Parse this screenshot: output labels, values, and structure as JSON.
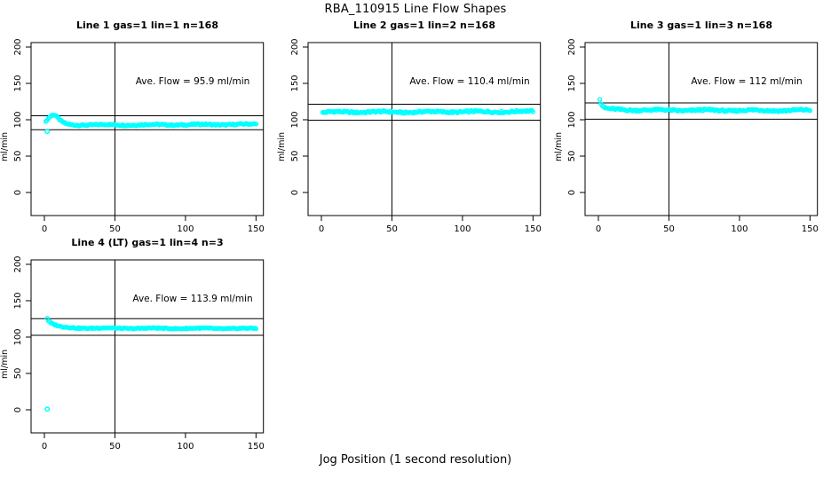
{
  "page": {
    "title": "RBA_110915  Line Flow Shapes",
    "xlabel": "Jog Position (1 second resolution)"
  },
  "colors": {
    "points": "#00FFFF",
    "axis": "#000000",
    "background": "#ffffff"
  },
  "chart_data": [
    {
      "type": "scatter",
      "title": "Line 1 gas=1 lin=1 n=168",
      "annotation": "Ave. Flow =  95.9  ml/min",
      "ave_flow_ml_min": 95.9,
      "n": 168,
      "ylabel": "ml/min",
      "xticks": [
        0,
        50,
        100,
        150
      ],
      "yticks": [
        0,
        50,
        100,
        150,
        200
      ],
      "xlim": [
        -9,
        155
      ],
      "ylim": [
        -32,
        207
      ],
      "vline_x": 50,
      "hlines": [
        105.5,
        86.3
      ],
      "grid": false,
      "n_points": 168,
      "profile": [
        [
          1,
          97
        ],
        [
          2,
          100
        ],
        [
          4,
          104
        ],
        [
          6,
          106.5
        ],
        [
          8,
          105.5
        ],
        [
          10,
          101
        ],
        [
          12,
          97.5
        ],
        [
          15,
          94.5
        ],
        [
          20,
          93
        ],
        [
          60,
          93
        ],
        [
          110,
          93.3
        ],
        [
          150,
          93.8
        ]
      ],
      "noise": 0.9,
      "outliers": [
        [
          2,
          84
        ]
      ]
    },
    {
      "type": "scatter",
      "title": "Line 2 gas=1 lin=2 n=168",
      "annotation": "Ave. Flow =  110.4  ml/min",
      "ave_flow_ml_min": 110.4,
      "n": 168,
      "ylabel": "ml/min",
      "xticks": [
        0,
        50,
        100,
        150
      ],
      "yticks": [
        0,
        50,
        100,
        150,
        200
      ],
      "xlim": [
        -9,
        155
      ],
      "ylim": [
        -32,
        207
      ],
      "vline_x": 50,
      "hlines": [
        121.4,
        99.4
      ],
      "grid": false,
      "n_points": 168,
      "profile": [
        [
          1,
          109.5
        ],
        [
          5,
          110.5
        ],
        [
          30,
          110.8
        ],
        [
          60,
          110.5
        ],
        [
          90,
          111
        ],
        [
          120,
          111
        ],
        [
          150,
          111.5
        ]
      ],
      "noise": 1.2,
      "outliers": []
    },
    {
      "type": "scatter",
      "title": "Line 3 gas=1 lin=3 n=168",
      "annotation": "Ave. Flow =  112  ml/min",
      "ave_flow_ml_min": 112,
      "n": 168,
      "ylabel": "ml/min",
      "xticks": [
        0,
        50,
        100,
        150
      ],
      "yticks": [
        0,
        50,
        100,
        150,
        200
      ],
      "xlim": [
        -9,
        155
      ],
      "ylim": [
        -32,
        207
      ],
      "vline_x": 50,
      "hlines": [
        123.2,
        100.8
      ],
      "grid": false,
      "n_points": 168,
      "profile": [
        [
          1,
          129
        ],
        [
          2,
          121
        ],
        [
          4,
          116
        ],
        [
          8,
          114.5
        ],
        [
          15,
          113.8
        ],
        [
          40,
          113.2
        ],
        [
          80,
          113
        ],
        [
          120,
          112.8
        ],
        [
          150,
          113
        ]
      ],
      "noise": 1.2,
      "outliers": []
    },
    {
      "type": "scatter",
      "title": "Line 4 (LT) gas=1 lin=4 n=3",
      "annotation": "Ave. Flow =  113.9  ml/min",
      "ave_flow_ml_min": 113.9,
      "n": 3,
      "ylabel": "ml/min",
      "xticks": [
        0,
        50,
        100,
        150
      ],
      "yticks": [
        0,
        50,
        100,
        150,
        200
      ],
      "xlim": [
        -9,
        155
      ],
      "ylim": [
        -32,
        207
      ],
      "vline_x": 50,
      "hlines": [
        125.3,
        102.5
      ],
      "grid": false,
      "n_points": 168,
      "profile": [
        [
          2,
          126
        ],
        [
          3,
          122
        ],
        [
          5,
          118.5
        ],
        [
          8,
          116
        ],
        [
          12,
          114
        ],
        [
          18,
          113
        ],
        [
          30,
          112.3
        ],
        [
          80,
          112
        ],
        [
          150,
          111.8
        ]
      ],
      "noise": 0.7,
      "outliers": [
        [
          2,
          1
        ]
      ]
    }
  ]
}
